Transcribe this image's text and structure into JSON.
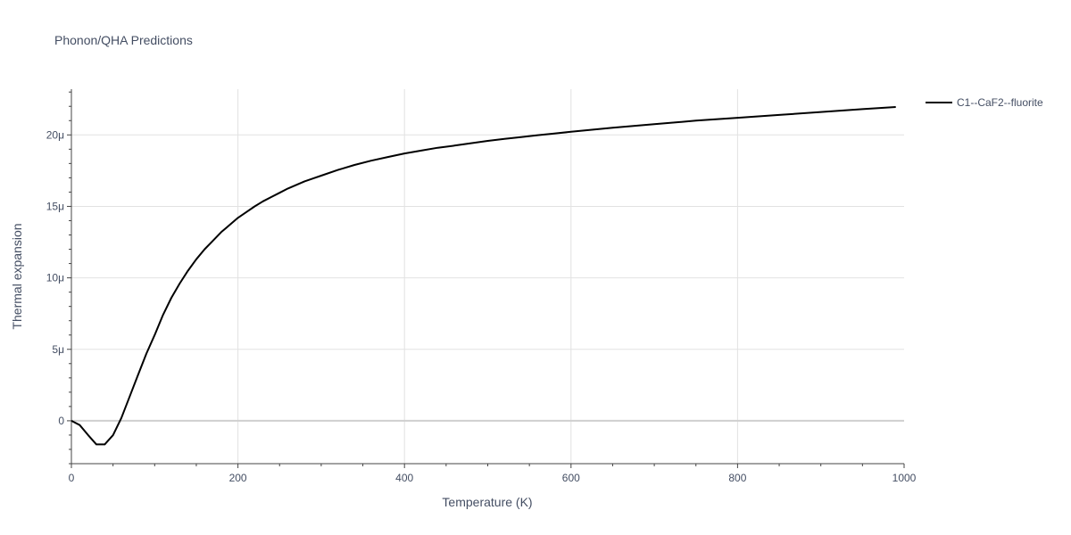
{
  "chart_data": {
    "type": "line",
    "title": "Phonon/QHA Predictions",
    "xlabel": "Temperature (K)",
    "ylabel": "Thermal expansion",
    "xlim": [
      0,
      1000
    ],
    "ylim": [
      -3e-06,
      2.32e-05
    ],
    "grid": true,
    "legend_position": "top-right",
    "x_ticks": [
      {
        "value": 0,
        "label": "0"
      },
      {
        "value": 200,
        "label": "200"
      },
      {
        "value": 400,
        "label": "400"
      },
      {
        "value": 600,
        "label": "600"
      },
      {
        "value": 800,
        "label": "800"
      },
      {
        "value": 1000,
        "label": "1000"
      }
    ],
    "y_ticks": [
      {
        "value": 0,
        "label": "0"
      },
      {
        "value": 5e-06,
        "label": "5μ"
      },
      {
        "value": 1e-05,
        "label": "10μ"
      },
      {
        "value": 1.5e-05,
        "label": "15μ"
      },
      {
        "value": 2e-05,
        "label": "20μ"
      }
    ],
    "series": [
      {
        "name": "C1--CaF2--fluorite",
        "color": "#000000",
        "x": [
          0,
          10,
          20,
          30,
          40,
          50,
          60,
          70,
          80,
          90,
          100,
          110,
          120,
          130,
          140,
          150,
          160,
          170,
          180,
          190,
          200,
          210,
          220,
          230,
          240,
          250,
          260,
          270,
          280,
          290,
          300,
          320,
          340,
          360,
          380,
          400,
          420,
          440,
          460,
          480,
          500,
          520,
          540,
          560,
          580,
          600,
          650,
          700,
          750,
          800,
          850,
          900,
          950,
          990
        ],
        "y": [
          0,
          -3e-07,
          -1e-06,
          -1.65e-06,
          -1.65e-06,
          -1e-06,
          2e-07,
          1.7e-06,
          3.2e-06,
          4.7e-06,
          6e-06,
          7.4e-06,
          8.6e-06,
          9.6e-06,
          1.05e-05,
          1.13e-05,
          1.2e-05,
          1.26e-05,
          1.32e-05,
          1.37e-05,
          1.42e-05,
          1.46e-05,
          1.5e-05,
          1.535e-05,
          1.565e-05,
          1.595e-05,
          1.625e-05,
          1.65e-05,
          1.675e-05,
          1.695e-05,
          1.715e-05,
          1.755e-05,
          1.79e-05,
          1.82e-05,
          1.845e-05,
          1.87e-05,
          1.89e-05,
          1.91e-05,
          1.925e-05,
          1.942e-05,
          1.958e-05,
          1.972e-05,
          1.985e-05,
          1.998e-05,
          2.01e-05,
          2.022e-05,
          2.05e-05,
          2.075e-05,
          2.1e-05,
          2.12e-05,
          2.14e-05,
          2.16e-05,
          2.18e-05,
          2.195e-05
        ]
      }
    ]
  }
}
